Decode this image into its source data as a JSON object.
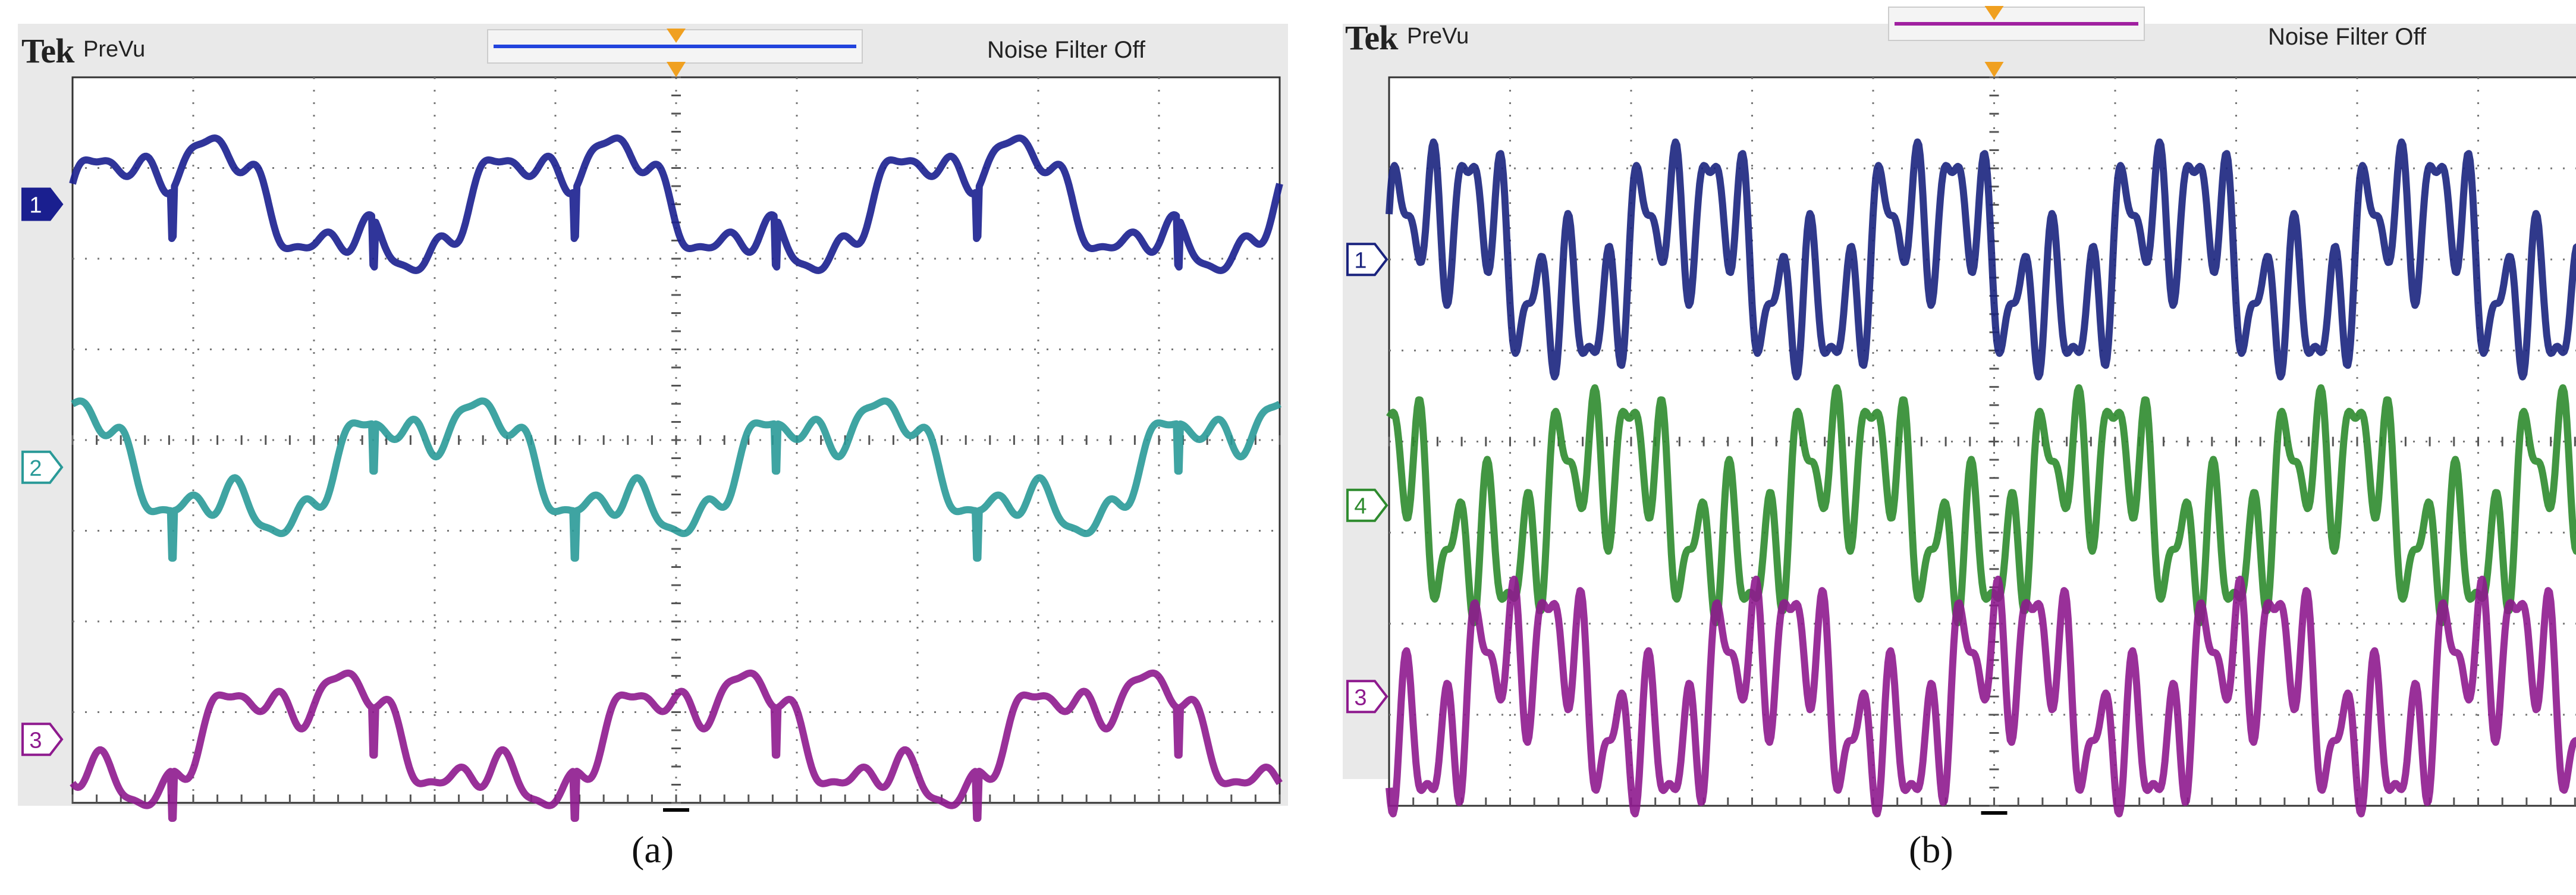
{
  "chart_data": [
    {
      "type": "line",
      "panel_label": "(a)",
      "header": {
        "brand": "Tek",
        "mode": "PreVu",
        "filter_status": "Noise Filter Off"
      },
      "colors": {
        "ch1": "#1a1f8f",
        "ch2": "#2a9a98",
        "ch3": "#8e1a8e",
        "trigger": "#f0a020",
        "record_bar": "#2244dd"
      },
      "channel_markers": [
        "1",
        "2",
        "3"
      ],
      "grid": true,
      "divisions": {
        "x": 10,
        "y": 8
      },
      "series": [
        {
          "channel": "1",
          "cycles_on_screen": 3,
          "offset_div": 2.6
        },
        {
          "channel": "2",
          "cycles_on_screen": 3,
          "offset_div": -0.3
        },
        {
          "channel": "3",
          "cycles_on_screen": 3,
          "offset_div": -3.3
        }
      ]
    },
    {
      "type": "line",
      "panel_label": "(b)",
      "header": {
        "brand": "Tek",
        "mode": "PreVu",
        "filter_status": "Noise Filter Off"
      },
      "colors": {
        "ch1": "#1a237e",
        "ch4": "#2e8b2e",
        "ch3": "#8e1a8e",
        "trigger": "#f0a020",
        "record_bar": "#a020a0"
      },
      "channel_markers": [
        "1",
        "4",
        "3"
      ],
      "grid": true,
      "divisions": {
        "x": 10,
        "y": 8
      },
      "series": [
        {
          "channel": "1",
          "cycles_on_screen": 5,
          "offset_div": 2.0
        },
        {
          "channel": "4",
          "cycles_on_screen": 5,
          "offset_div": -0.7
        },
        {
          "channel": "3",
          "cycles_on_screen": 5,
          "offset_div": -2.8
        }
      ]
    }
  ]
}
